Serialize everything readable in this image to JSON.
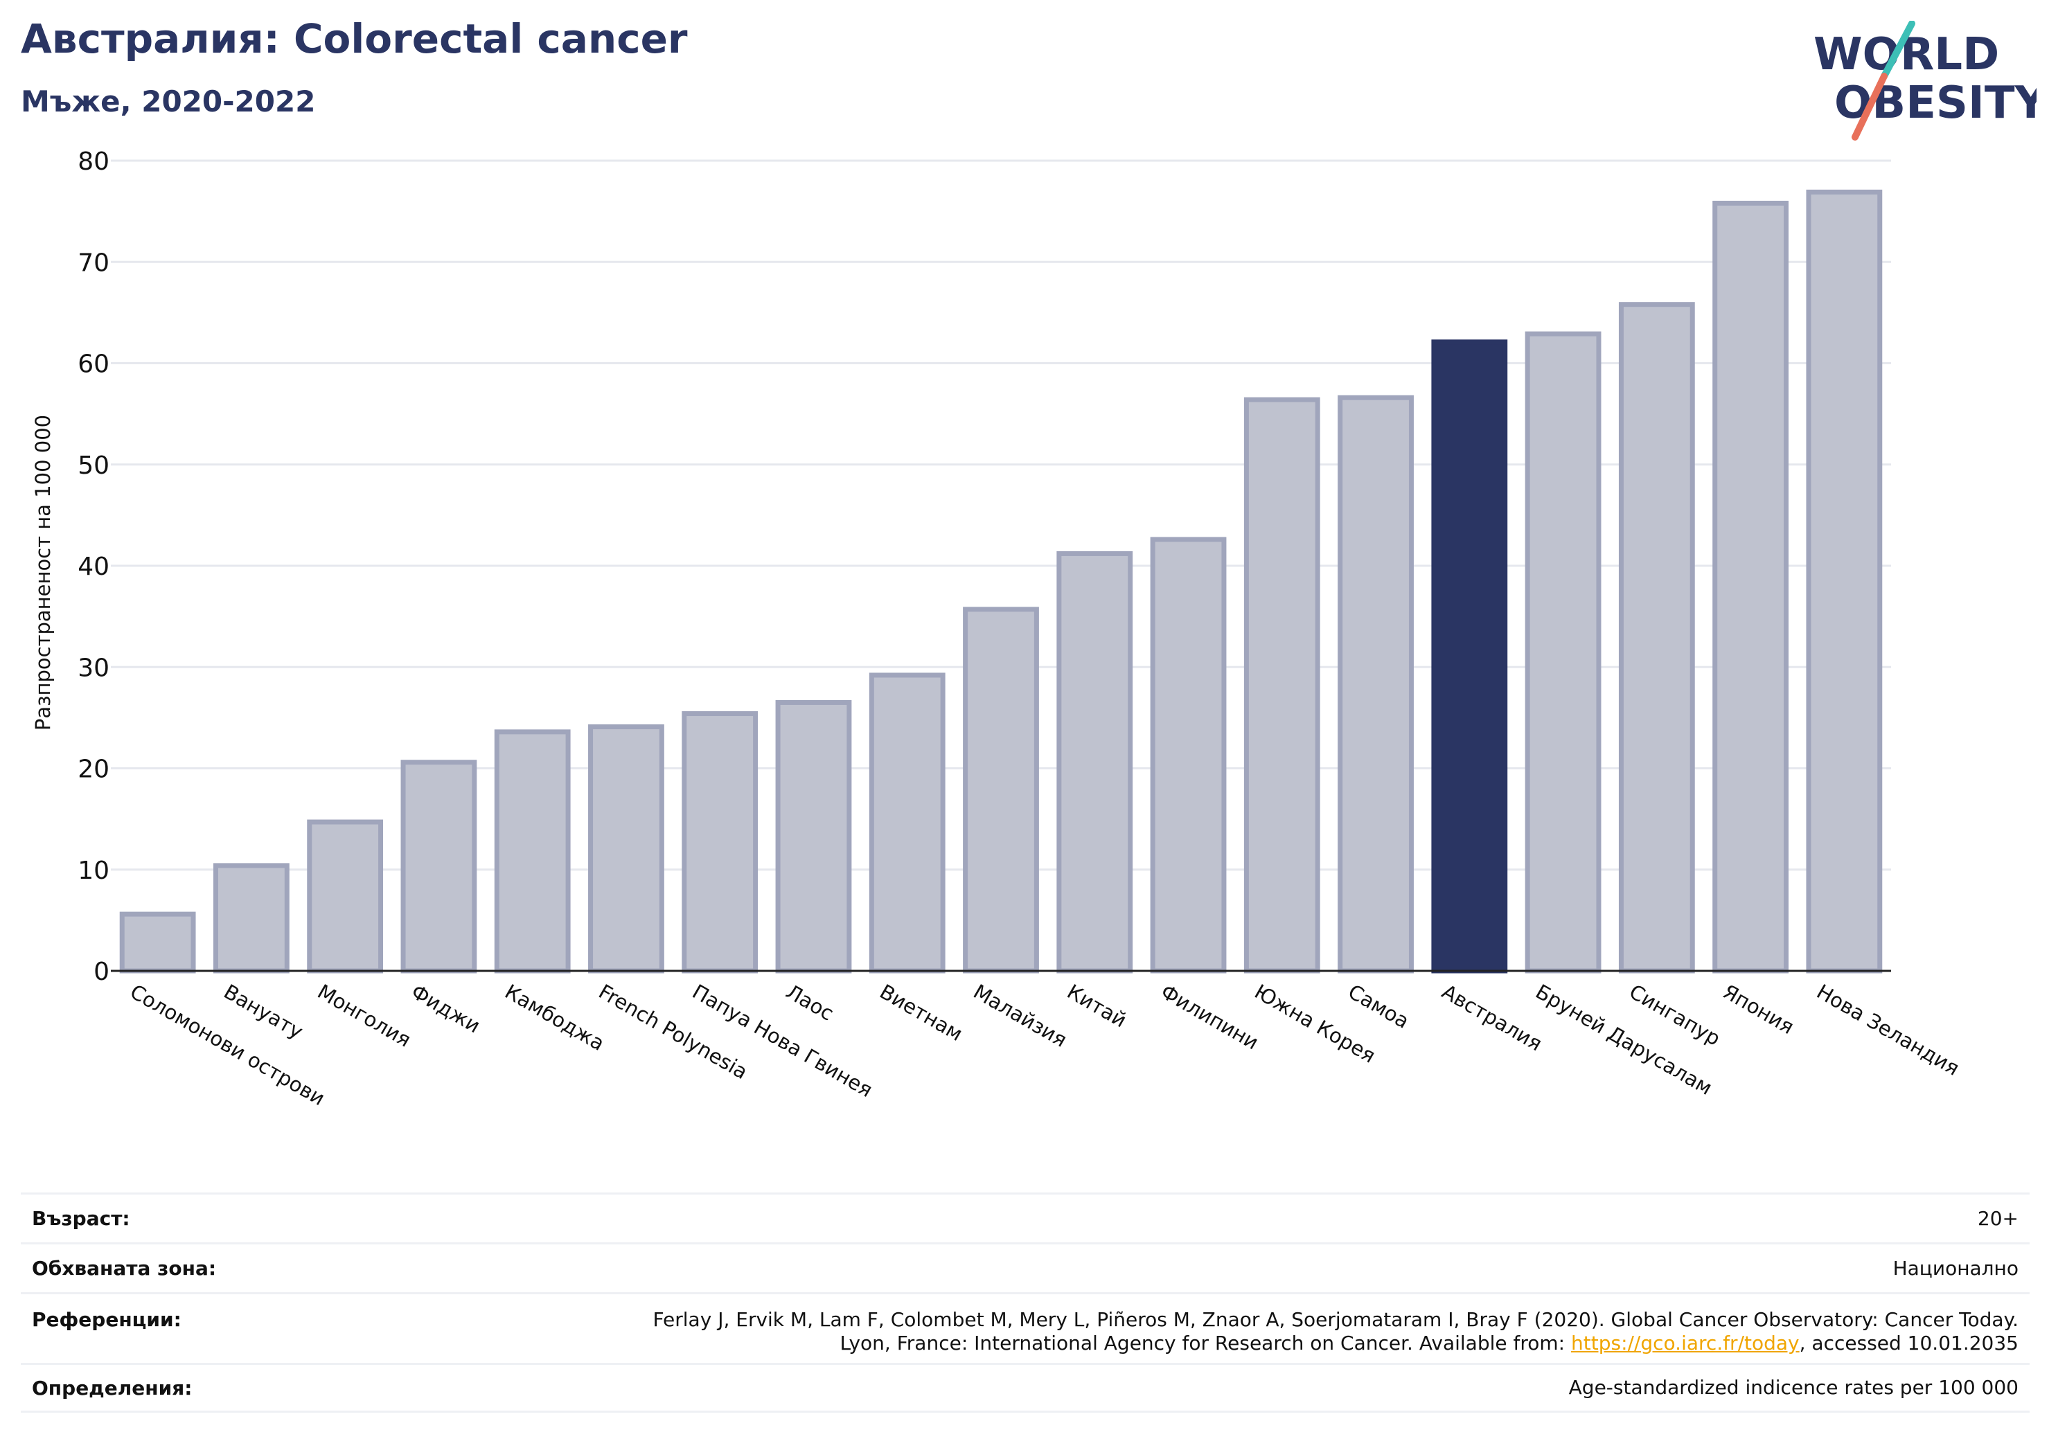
{
  "header": {
    "title": "Австралия: Colorectal cancer",
    "subtitle": "Мъже, 2020-2022"
  },
  "logo": {
    "line1": "WORLD",
    "line2": "OBESITY",
    "icon": "world-obesity-logo"
  },
  "colors": {
    "highlight": "#2a3563",
    "bar_fill": "#bfc2cf",
    "bar_edge": "#a0a5bc",
    "grid": "#e6e8ee",
    "accent_teal": "#3dbfb6",
    "accent_coral": "#e8705a"
  },
  "chart_data": {
    "type": "bar",
    "title": "Австралия: Colorectal cancer",
    "subtitle": "Мъже, 2020-2022",
    "xlabel": "",
    "ylabel": "Разпространеност  на 100 000",
    "ylim": [
      0,
      80
    ],
    "yticks": [
      0,
      10,
      20,
      30,
      40,
      50,
      60,
      70,
      80
    ],
    "grid": true,
    "highlight_category": "Австралия",
    "categories": [
      "Соломонови острови",
      "Вануату",
      "Монголия",
      "Фиджи",
      "Камбоджа",
      "French Polynesia",
      "Папуа Нова Гвинея",
      "Лаос",
      "Виетнам",
      "Малайзия",
      "Китай",
      "Филипини",
      "Южна Корея",
      "Самоа",
      "Австралия",
      "Бруней Дарусалам",
      "Сингапур",
      "Япония",
      "Нова Зеландия"
    ],
    "values": [
      5.6,
      10.4,
      14.7,
      20.6,
      23.6,
      24.1,
      25.4,
      26.5,
      29.2,
      35.7,
      41.2,
      42.6,
      56.4,
      56.6,
      62.1,
      62.9,
      65.8,
      75.8,
      76.9
    ]
  },
  "info": {
    "age_label": "Възраст:",
    "age_value": "20+",
    "area_label": "Обхваната зона:",
    "area_value": "Национално",
    "refs_label": "Референции:",
    "refs_line1": "Ferlay J, Ervik M, Lam F, Colombet M, Mery L, Piñeros M, Znaor A, Soerjomataram I, Bray F (2020). Global Cancer Observatory: Cancer Today.",
    "refs_line2_pre": "Lyon, France: International Agency for Research on Cancer. Available from: ",
    "refs_link": "https://gco.iarc.fr/today",
    "refs_line2_post": ", accessed 10.01.2035",
    "defs_label": "Определения:",
    "defs_value": "Age-standardized indicence rates per 100 000"
  }
}
